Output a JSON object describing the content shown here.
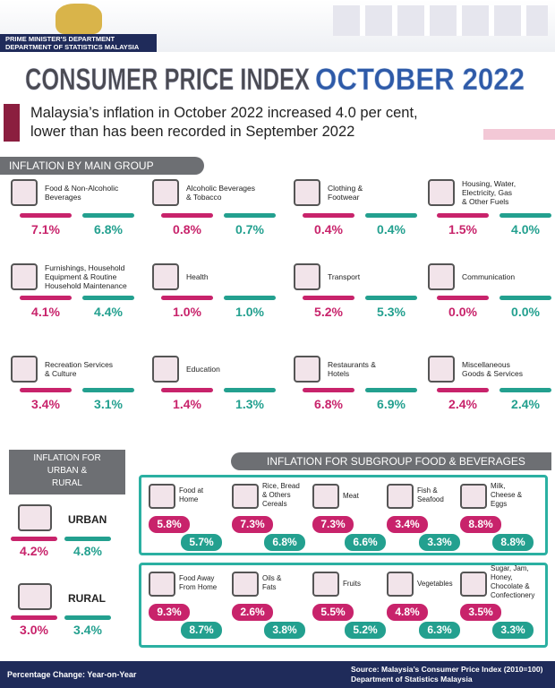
{
  "header": {
    "department": [
      "PRIME MINISTER'S DEPARTMENT",
      "DEPARTMENT OF STATISTICS MALAYSIA"
    ]
  },
  "title": {
    "main": "CONSUMER PRICE INDEX",
    "period": "OCTOBER 2022"
  },
  "summary": [
    "Malaysia’s inflation in October 2022 increased 4.0 per cent,",
    "lower than has been recorded in September 2022"
  ],
  "main_group": {
    "title": "INFLATION BY MAIN GROUP",
    "items": [
      {
        "name": [
          "Food & Non-Alcoholic",
          "Beverages"
        ],
        "current": "7.1%",
        "previous": "6.8%"
      },
      {
        "name": [
          "Alcoholic Beverages",
          "& Tobacco"
        ],
        "current": "0.8%",
        "previous": "0.7%"
      },
      {
        "name": [
          "Clothing &",
          "Footwear"
        ],
        "current": "0.4%",
        "previous": "0.4%"
      },
      {
        "name": [
          "Housing, Water,",
          "Electricity, Gas",
          "& Other Fuels"
        ],
        "current": "1.5%",
        "previous": "4.0%"
      },
      {
        "name": [
          "Furnishings, Household",
          "Equipment & Routine",
          "Household Maintenance"
        ],
        "current": "4.1%",
        "previous": "4.4%"
      },
      {
        "name": [
          "Health"
        ],
        "current": "1.0%",
        "previous": "1.0%"
      },
      {
        "name": [
          "Transport"
        ],
        "current": "5.2%",
        "previous": "5.3%"
      },
      {
        "name": [
          "Communication"
        ],
        "current": "0.0%",
        "previous": "0.0%"
      },
      {
        "name": [
          "Recreation Services",
          "& Culture"
        ],
        "current": "3.4%",
        "previous": "3.1%"
      },
      {
        "name": [
          "Education"
        ],
        "current": "1.4%",
        "previous": "1.3%"
      },
      {
        "name": [
          "Restaurants &",
          "Hotels"
        ],
        "current": "6.8%",
        "previous": "6.9%"
      },
      {
        "name": [
          "Miscellaneous",
          "Goods & Services"
        ],
        "current": "2.4%",
        "previous": "2.4%"
      }
    ]
  },
  "urban_rural": {
    "title": [
      "INFLATION FOR",
      "URBAN &",
      "RURAL"
    ],
    "items": [
      {
        "name": "URBAN",
        "current": "4.2%",
        "previous": "4.8%"
      },
      {
        "name": "RURAL",
        "current": "3.0%",
        "previous": "3.4%"
      }
    ]
  },
  "subgroup": {
    "title": "INFLATION FOR SUBGROUP FOOD & BEVERAGES",
    "items": [
      {
        "name": [
          "Food at",
          "Home"
        ],
        "current": "5.8%",
        "previous": "5.7%"
      },
      {
        "name": [
          "Rice, Bread",
          "& Others",
          "Cereals"
        ],
        "current": "7.3%",
        "previous": "6.8%"
      },
      {
        "name": [
          "Meat"
        ],
        "current": "7.3%",
        "previous": "6.6%"
      },
      {
        "name": [
          "Fish &",
          "Seafood"
        ],
        "current": "3.4%",
        "previous": "3.3%"
      },
      {
        "name": [
          "Milk,",
          "Cheese &",
          "Eggs"
        ],
        "current": "8.8%",
        "previous": "8.8%"
      },
      {
        "name": [
          "Food Away",
          "From Home"
        ],
        "current": "9.3%",
        "previous": "8.7%"
      },
      {
        "name": [
          "Oils &",
          "Fats"
        ],
        "current": "2.6%",
        "previous": "3.8%"
      },
      {
        "name": [
          "Fruits"
        ],
        "current": "5.5%",
        "previous": "5.2%"
      },
      {
        "name": [
          "Vegetables"
        ],
        "current": "4.8%",
        "previous": "6.3%"
      },
      {
        "name": [
          "Sugar, Jam,",
          "Honey,",
          "Chocolate &",
          "Confectionery"
        ],
        "current": "3.5%",
        "previous": "3.3%"
      }
    ]
  },
  "footer": {
    "note": "Percentage Change: Year-on-Year",
    "source": [
      "Source: Malaysia’s Consumer Price Index (2010=100)",
      "Department of Statistics Malaysia"
    ]
  }
}
